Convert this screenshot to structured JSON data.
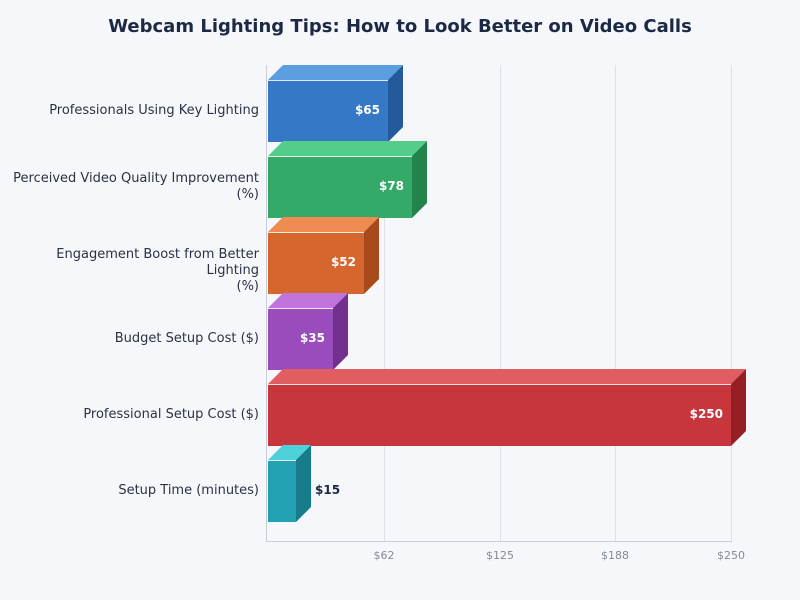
{
  "header": {
    "title": "Webcam Lighting Tips: How to Look Better on Video Calls"
  },
  "axis": {
    "ticks": [
      {
        "label": "$62",
        "value": 62.5
      },
      {
        "label": "$125",
        "value": 125
      },
      {
        "label": "$188",
        "value": 187.5
      },
      {
        "label": "$250",
        "value": 250
      }
    ]
  },
  "bars": [
    {
      "label_line1": "Professionals Using Key Lighting",
      "label_line2": "",
      "value": 65,
      "value_label": "$65",
      "front": "#3578c6",
      "top": "#5a9ee0",
      "side": "#245a9c",
      "inside": true
    },
    {
      "label_line1": "Perceived Video Quality Improvement",
      "label_line2": "(%)",
      "value": 78,
      "value_label": "$78",
      "front": "#35a968",
      "top": "#55cd8a",
      "side": "#23834d",
      "inside": true
    },
    {
      "label_line1": "Engagement Boost from Better Lighting",
      "label_line2": "(%)",
      "value": 52,
      "value_label": "$52",
      "front": "#d5662e",
      "top": "#ee8c52",
      "side": "#a84a1c",
      "inside": true
    },
    {
      "label_line1": "Budget Setup Cost ($)",
      "label_line2": "",
      "value": 35,
      "value_label": "$35",
      "front": "#9a4cbc",
      "top": "#c073da",
      "side": "#73308f",
      "inside": true
    },
    {
      "label_line1": "Professional Setup Cost ($)",
      "label_line2": "",
      "value": 250,
      "value_label": "$250",
      "front": "#c7363c",
      "top": "#e05d62",
      "side": "#951f25",
      "inside": true
    },
    {
      "label_line1": "Setup Time (minutes)",
      "label_line2": "",
      "value": 15,
      "value_label": "$15",
      "front": "#23a1b2",
      "top": "#4fcfda",
      "side": "#167c8a",
      "inside": false
    }
  ],
  "chart_data": {
    "type": "bar",
    "orientation": "horizontal",
    "title": "Webcam Lighting Tips: How to Look Better on Video Calls",
    "categories": [
      "Professionals Using Key Lighting",
      "Perceived Video Quality Improvement (%)",
      "Engagement Boost from Better Lighting (%)",
      "Budget Setup Cost ($)",
      "Professional Setup Cost ($)",
      "Setup Time (minutes)"
    ],
    "values": [
      65,
      78,
      52,
      35,
      250,
      15
    ],
    "data_labels": [
      "$65",
      "$78",
      "$52",
      "$35",
      "$250",
      "$15"
    ],
    "xlabel": "",
    "ylabel": "",
    "xlim": [
      0,
      250
    ],
    "x_ticks": [
      "$62",
      "$125",
      "$188",
      "$250"
    ],
    "grid": "vertical",
    "legend": "none",
    "style": "3d"
  }
}
